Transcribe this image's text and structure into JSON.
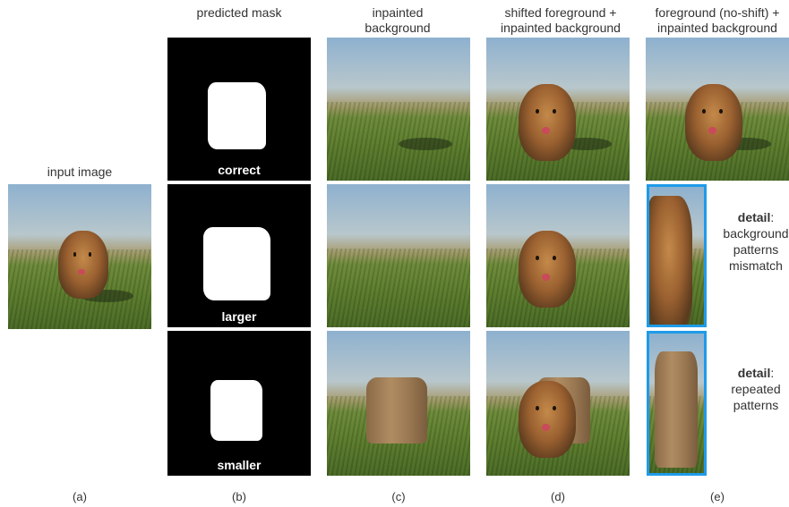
{
  "headers": {
    "input": "input image",
    "mask": "predicted mask",
    "inpainted": "inpainted\nbackground",
    "shifted": "shifted foreground +\ninpainted background",
    "noshift": "foreground (no-shift) +\ninpainted background"
  },
  "mask_labels": [
    "correct",
    "larger",
    "smaller"
  ],
  "details": [
    {
      "bold": "detail",
      "rest": ":",
      "lines": "background\npatterns\nmismatch"
    },
    {
      "bold": "detail",
      "rest": ":",
      "lines": "repeated\npatterns"
    }
  ],
  "captions": [
    "(a)",
    "(b)",
    "(c)",
    "(d)",
    "(e)"
  ],
  "colors": {
    "detail_border": "#1e9be8",
    "mask_bg": "#000000"
  }
}
